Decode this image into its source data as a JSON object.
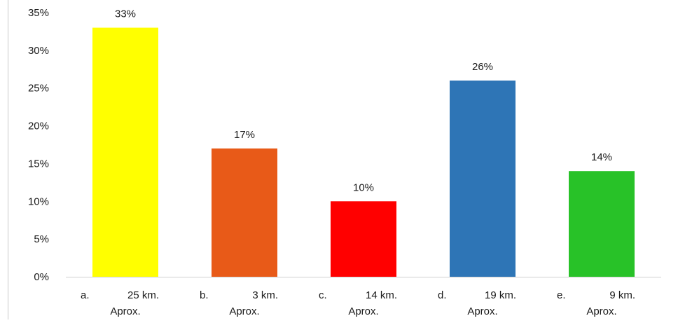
{
  "chart_data": {
    "type": "bar",
    "categories": [
      {
        "letter": "a.",
        "distance": "25 km.",
        "suffix": "Aprox."
      },
      {
        "letter": "b.",
        "distance": "3 km.",
        "suffix": "Aprox."
      },
      {
        "letter": "c.",
        "distance": "14 km.",
        "suffix": "Aprox."
      },
      {
        "letter": "d.",
        "distance": "19 km.",
        "suffix": "Aprox."
      },
      {
        "letter": "e.",
        "distance": "9  km.",
        "suffix": "Aprox."
      }
    ],
    "values": [
      33,
      17,
      10,
      26,
      14
    ],
    "value_labels": [
      "33%",
      "17%",
      "10%",
      "26%",
      "14%"
    ],
    "colors": [
      "#ffff00",
      "#e85a18",
      "#ff0000",
      "#2e75b6",
      "#28c228"
    ],
    "ylim": [
      0,
      35
    ],
    "yticks": [
      {
        "value": 0,
        "label": "0%"
      },
      {
        "value": 5,
        "label": "5%"
      },
      {
        "value": 10,
        "label": "10%"
      },
      {
        "value": 15,
        "label": "15%"
      },
      {
        "value": 20,
        "label": "20%"
      },
      {
        "value": 25,
        "label": "25%"
      },
      {
        "value": 30,
        "label": "30%"
      },
      {
        "value": 35,
        "label": "35%"
      }
    ],
    "grid": false,
    "legend": "none",
    "axis_color": "#d0d0d0"
  }
}
